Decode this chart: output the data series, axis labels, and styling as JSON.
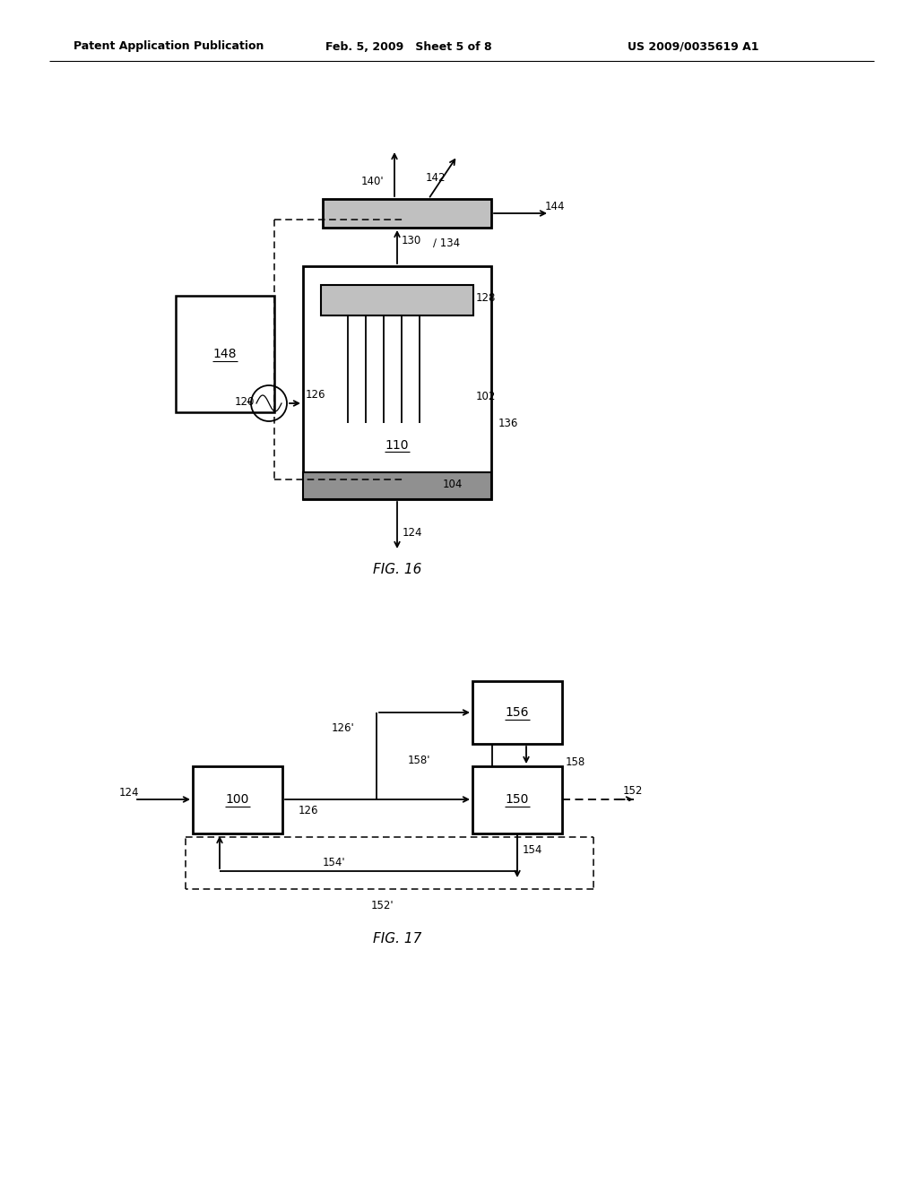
{
  "bg_color": "#ffffff",
  "header_left": "Patent Application Publication",
  "header_mid": "Feb. 5, 2009   Sheet 5 of 8",
  "header_right": "US 2009/0035619 A1",
  "fig16_caption": "FIG. 16",
  "fig17_caption": "FIG. 17"
}
